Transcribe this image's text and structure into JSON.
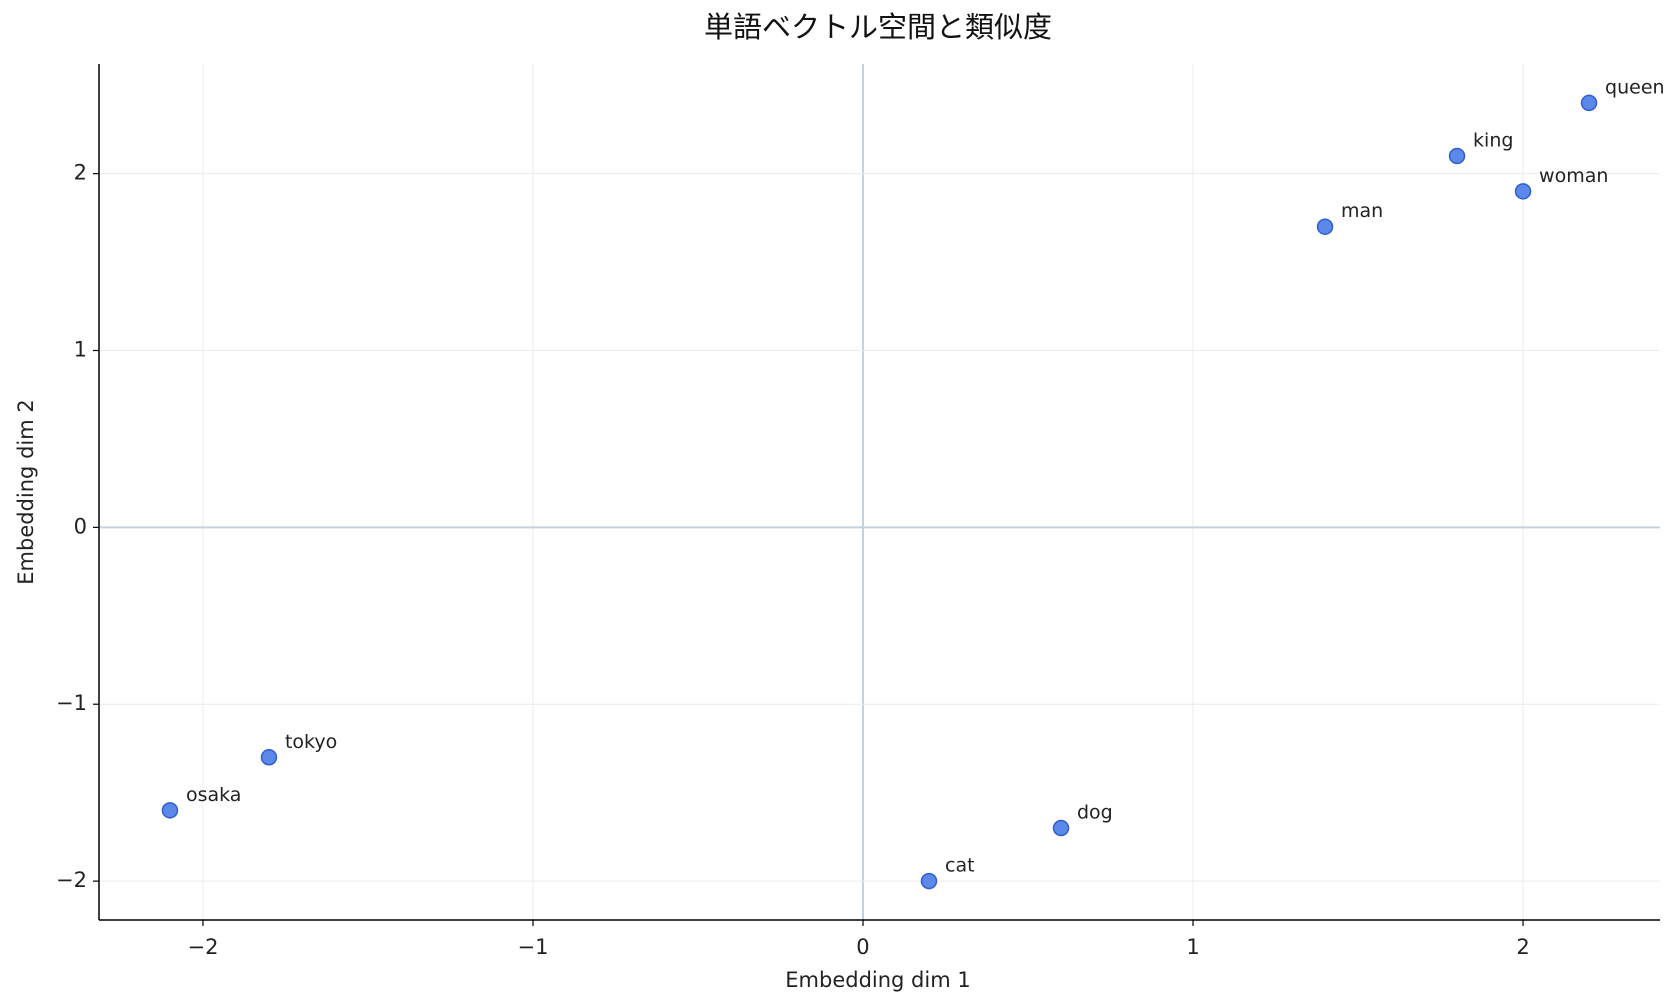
{
  "chart_data": {
    "type": "scatter",
    "title": "単語ベクトル空間と類似度",
    "xlabel": "Embedding dim 1",
    "ylabel": "Embedding dim 2",
    "labels": [
      "king",
      "queen",
      "man",
      "woman",
      "tokyo",
      "osaka",
      "dog",
      "cat"
    ],
    "x": [
      1.8,
      2.2,
      1.4,
      2.0,
      -1.8,
      -2.1,
      0.6,
      0.2
    ],
    "y": [
      2.1,
      2.4,
      1.7,
      1.9,
      -1.3,
      -1.6,
      -1.7,
      -2.0
    ],
    "color": "#4a7be8",
    "xlim": [
      -2.315,
      2.415
    ],
    "ylim": [
      -2.22,
      2.62
    ],
    "xticks": [
      {
        "value": -2,
        "label": "−2"
      },
      {
        "value": -1,
        "label": "−1"
      },
      0,
      1,
      2
    ],
    "yticks": [
      {
        "value": -2,
        "label": "−2"
      },
      {
        "value": -1,
        "label": "−1"
      },
      0,
      1,
      2
    ],
    "grid": true,
    "zero_lines": true
  }
}
